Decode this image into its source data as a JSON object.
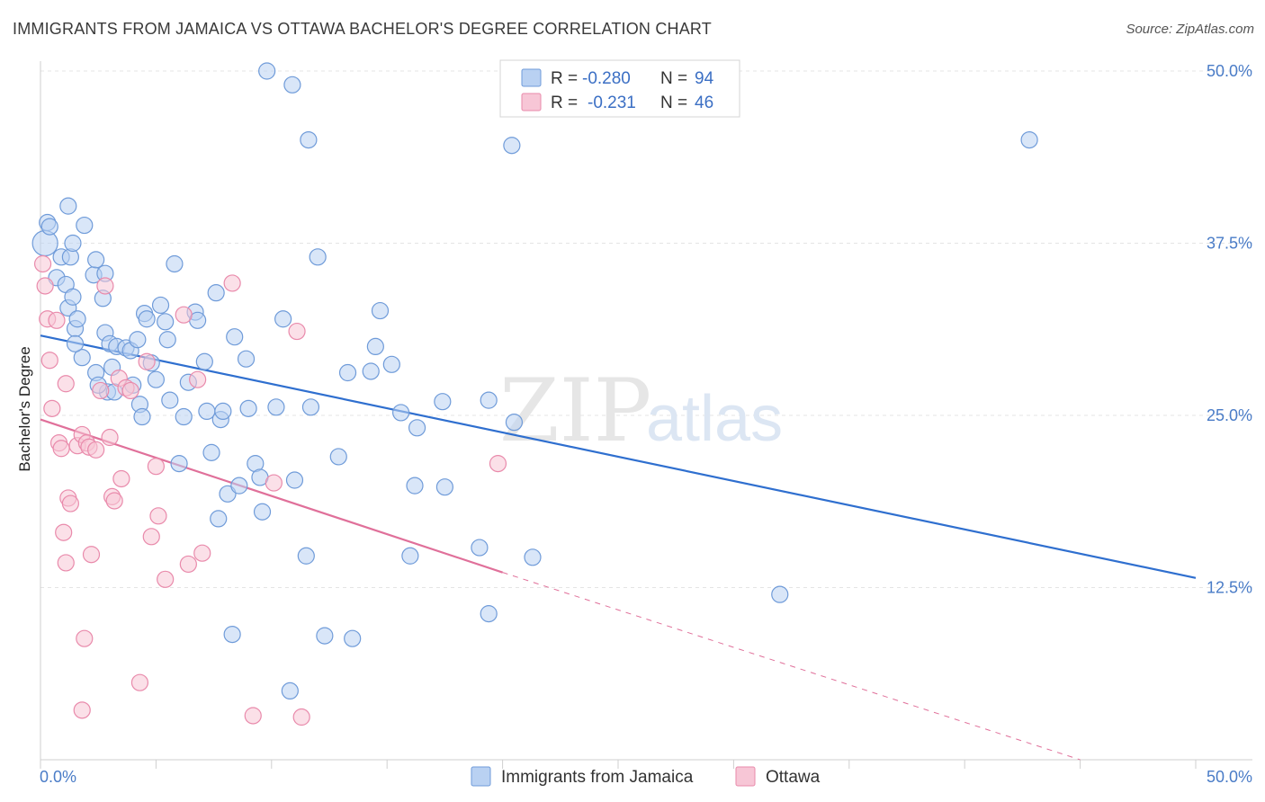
{
  "title": "IMMIGRANTS FROM JAMAICA VS OTTAWA BACHELOR'S DEGREE CORRELATION CHART",
  "source": "Source: ZipAtlas.com",
  "watermark": {
    "zip": "ZIP",
    "atlas": "atlas"
  },
  "colors": {
    "blue_fill": "#b9d1f2",
    "blue_stroke": "#6f9bd9",
    "blue_line": "#2f6fcf",
    "pink_fill": "#f7c6d6",
    "pink_stroke": "#e98aab",
    "pink_line": "#e0709a",
    "axis_text": "#4a7cc7",
    "grid": "#e4e4e4"
  },
  "legend": {
    "rows": [
      {
        "r_label": "R =",
        "r_value": "-0.280",
        "n_label": "N =",
        "n_value": "94"
      },
      {
        "r_label": "R =",
        "r_value": "-0.231",
        "n_label": "N =",
        "n_value": "46"
      }
    ]
  },
  "chart_data": {
    "type": "scatter",
    "title": "IMMIGRANTS FROM JAMAICA VS OTTAWA BACHELOR'S DEGREE CORRELATION CHART",
    "xlabel": "",
    "ylabel": "Bachelor's Degree",
    "xlim": [
      0,
      50
    ],
    "ylim": [
      0,
      50
    ],
    "x_tick_labels": {
      "left": "0.0%",
      "right": "50.0%"
    },
    "y_ticks": [
      {
        "value": 12.5,
        "label": "12.5%"
      },
      {
        "value": 25.0,
        "label": "25.0%"
      },
      {
        "value": 37.5,
        "label": "37.5%"
      },
      {
        "value": 50.0,
        "label": "50.0%"
      }
    ],
    "grid": true,
    "legend_position": "top-center",
    "series": [
      {
        "name": "Immigrants from Jamaica",
        "color": "blue",
        "r": -0.28,
        "n": 94,
        "trend": {
          "x0": 0,
          "y0": 30.8,
          "x1": 50,
          "y1": 13.2
        },
        "points": [
          [
            0.2,
            37.5
          ],
          [
            0.3,
            39.0
          ],
          [
            0.4,
            38.7
          ],
          [
            0.7,
            35.0
          ],
          [
            0.9,
            36.5
          ],
          [
            1.1,
            34.5
          ],
          [
            1.2,
            32.8
          ],
          [
            1.3,
            36.5
          ],
          [
            1.2,
            40.2
          ],
          [
            1.4,
            33.6
          ],
          [
            1.5,
            31.3
          ],
          [
            1.6,
            32.0
          ],
          [
            1.8,
            29.2
          ],
          [
            1.5,
            30.2
          ],
          [
            1.9,
            38.8
          ],
          [
            1.4,
            37.5
          ],
          [
            2.3,
            35.2
          ],
          [
            2.4,
            36.3
          ],
          [
            2.8,
            35.3
          ],
          [
            2.7,
            33.5
          ],
          [
            2.8,
            31.0
          ],
          [
            2.4,
            28.1
          ],
          [
            2.9,
            26.7
          ],
          [
            2.5,
            27.2
          ],
          [
            3.0,
            30.2
          ],
          [
            3.1,
            28.5
          ],
          [
            3.2,
            26.7
          ],
          [
            3.3,
            30.0
          ],
          [
            3.7,
            29.9
          ],
          [
            3.9,
            29.7
          ],
          [
            4.0,
            27.2
          ],
          [
            4.2,
            30.5
          ],
          [
            4.5,
            32.4
          ],
          [
            4.6,
            32.0
          ],
          [
            4.3,
            25.8
          ],
          [
            4.4,
            24.9
          ],
          [
            4.8,
            28.8
          ],
          [
            5.0,
            27.6
          ],
          [
            5.2,
            33.0
          ],
          [
            5.4,
            31.8
          ],
          [
            5.5,
            30.5
          ],
          [
            5.6,
            26.1
          ],
          [
            5.8,
            36.0
          ],
          [
            6.0,
            21.5
          ],
          [
            6.2,
            24.9
          ],
          [
            6.4,
            27.4
          ],
          [
            6.7,
            32.5
          ],
          [
            6.8,
            31.9
          ],
          [
            7.1,
            28.9
          ],
          [
            7.2,
            25.3
          ],
          [
            7.4,
            22.3
          ],
          [
            7.6,
            33.9
          ],
          [
            7.7,
            17.5
          ],
          [
            7.8,
            24.7
          ],
          [
            7.9,
            25.3
          ],
          [
            8.1,
            19.3
          ],
          [
            8.3,
            9.1
          ],
          [
            8.4,
            30.7
          ],
          [
            8.6,
            19.9
          ],
          [
            8.9,
            29.1
          ],
          [
            9.0,
            25.5
          ],
          [
            9.3,
            21.5
          ],
          [
            9.5,
            20.5
          ],
          [
            9.6,
            18.0
          ],
          [
            9.8,
            50.0
          ],
          [
            10.2,
            25.6
          ],
          [
            10.5,
            32.0
          ],
          [
            10.8,
            5.0
          ],
          [
            10.9,
            49.0
          ],
          [
            11.0,
            20.3
          ],
          [
            11.5,
            14.8
          ],
          [
            11.6,
            45.0
          ],
          [
            11.7,
            25.6
          ],
          [
            12.0,
            36.5
          ],
          [
            12.3,
            9.0
          ],
          [
            12.9,
            22.0
          ],
          [
            13.3,
            28.1
          ],
          [
            13.5,
            8.8
          ],
          [
            14.3,
            28.2
          ],
          [
            14.5,
            30.0
          ],
          [
            14.7,
            32.6
          ],
          [
            15.2,
            28.7
          ],
          [
            15.6,
            25.2
          ],
          [
            16.0,
            14.8
          ],
          [
            16.2,
            19.9
          ],
          [
            16.3,
            24.1
          ],
          [
            17.4,
            26.0
          ],
          [
            17.5,
            19.8
          ],
          [
            19.0,
            15.4
          ],
          [
            19.4,
            26.1
          ],
          [
            19.4,
            10.6
          ],
          [
            20.4,
            44.6
          ],
          [
            20.5,
            24.5
          ],
          [
            21.3,
            14.7
          ],
          [
            32.0,
            12.0
          ],
          [
            42.8,
            45.0
          ]
        ]
      },
      {
        "name": "Ottawa",
        "color": "pink",
        "r": -0.231,
        "n": 46,
        "trend": {
          "x0": 0,
          "y0": 24.7,
          "x1": 20.0,
          "y1": 13.6
        },
        "trend_dashed": {
          "x0": 20.0,
          "y0": 13.6,
          "x1": 45.0,
          "y1": 0.0
        },
        "points": [
          [
            0.1,
            36.0
          ],
          [
            0.2,
            34.4
          ],
          [
            0.3,
            32.0
          ],
          [
            0.4,
            29.0
          ],
          [
            0.5,
            25.5
          ],
          [
            0.7,
            31.9
          ],
          [
            0.8,
            23.0
          ],
          [
            0.9,
            22.6
          ],
          [
            1.1,
            27.3
          ],
          [
            1.0,
            16.5
          ],
          [
            1.1,
            14.3
          ],
          [
            1.2,
            19.0
          ],
          [
            1.3,
            18.6
          ],
          [
            1.6,
            22.8
          ],
          [
            1.8,
            23.6
          ],
          [
            1.9,
            8.8
          ],
          [
            1.8,
            3.6
          ],
          [
            2.0,
            23.0
          ],
          [
            2.1,
            22.7
          ],
          [
            2.2,
            14.9
          ],
          [
            2.4,
            22.5
          ],
          [
            2.6,
            26.8
          ],
          [
            2.8,
            34.4
          ],
          [
            3.0,
            23.4
          ],
          [
            3.1,
            19.1
          ],
          [
            3.2,
            18.8
          ],
          [
            3.4,
            27.7
          ],
          [
            3.5,
            20.4
          ],
          [
            3.7,
            27.0
          ],
          [
            3.9,
            26.8
          ],
          [
            4.3,
            5.6
          ],
          [
            4.6,
            28.9
          ],
          [
            4.8,
            16.2
          ],
          [
            5.0,
            21.3
          ],
          [
            5.1,
            17.7
          ],
          [
            5.4,
            13.1
          ],
          [
            6.2,
            32.3
          ],
          [
            6.4,
            14.2
          ],
          [
            6.8,
            27.6
          ],
          [
            7.0,
            15.0
          ],
          [
            8.3,
            34.6
          ],
          [
            9.2,
            3.2
          ],
          [
            10.1,
            20.1
          ],
          [
            11.1,
            31.1
          ],
          [
            11.3,
            3.1
          ],
          [
            19.8,
            21.5
          ]
        ]
      }
    ]
  }
}
